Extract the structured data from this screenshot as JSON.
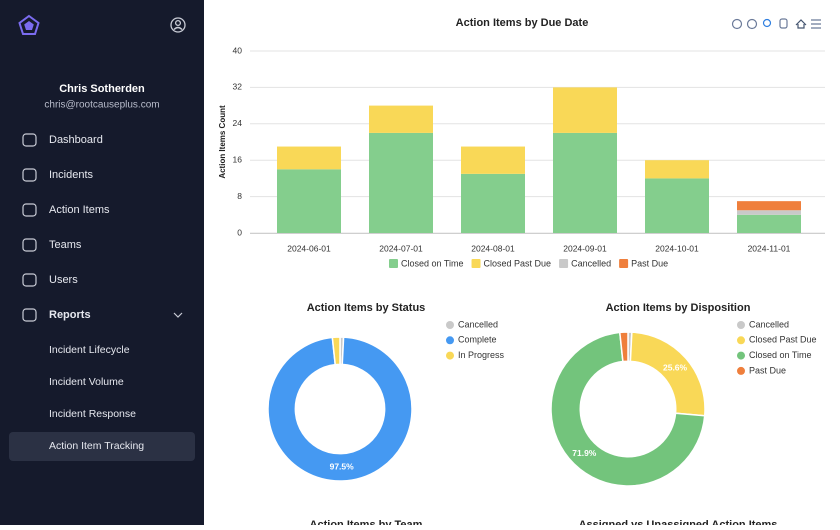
{
  "sidebar": {
    "user_name": "Chris Sotherden",
    "user_email": "chris@rootcauseplus.com",
    "nav": [
      "Dashboard",
      "Incidents",
      "Action Items",
      "Teams",
      "Users",
      "Reports"
    ],
    "reports_sub": [
      "Incident Lifecycle",
      "Incident Volume",
      "Incident Response",
      "Action Item Tracking"
    ]
  },
  "chart_data": [
    {
      "type": "bar",
      "stacked": true,
      "title": "Action Items by Due Date",
      "y_label": "Action Items Count",
      "categories": [
        "2024-06-01",
        "2024-07-01",
        "2024-08-01",
        "2024-09-01",
        "2024-10-01",
        "2024-11-01"
      ],
      "series": [
        {
          "name": "Closed on Time",
          "color": "#84ce8d",
          "values": [
            14,
            22,
            13,
            22,
            12,
            4
          ]
        },
        {
          "name": "Closed Past Due",
          "color": "#f9d857",
          "values": [
            5,
            6,
            6,
            10,
            4,
            0
          ]
        },
        {
          "name": "Cancelled",
          "color": "#c9c9c9",
          "values": [
            0,
            0,
            0,
            0,
            0,
            1
          ]
        },
        {
          "name": "Past Due",
          "color": "#ef7f3c",
          "values": [
            0,
            0,
            0,
            0,
            0,
            2
          ]
        }
      ],
      "ylim": [
        0,
        40
      ],
      "yticks": [
        0,
        8,
        16,
        24,
        32,
        40
      ],
      "grid": true,
      "legend": "bottom"
    },
    {
      "type": "donut",
      "title": "Action Items by Status",
      "categories": [
        "Cancelled",
        "Complete",
        "In Progress"
      ],
      "colors": [
        "#c9c9c9",
        "#4599f2",
        "#f9d857"
      ],
      "values": [
        0.8,
        97.5,
        1.7
      ],
      "value_labels": [
        null,
        "97.5%",
        null
      ],
      "legend": "right"
    },
    {
      "type": "donut",
      "title": "Action Items by Disposition",
      "categories": [
        "Cancelled",
        "Closed Past Due",
        "Closed on Time",
        "Past Due"
      ],
      "colors": [
        "#c9c9c9",
        "#f9d857",
        "#73c47c",
        "#ef7f3c"
      ],
      "values": [
        0.8,
        25.6,
        71.9,
        1.7
      ],
      "value_labels": [
        null,
        "25.6%",
        "71.9%",
        null
      ],
      "legend": "right"
    }
  ],
  "more_charts": [
    "Action Items by Team",
    "Assigned vs Unassigned Action Items"
  ]
}
